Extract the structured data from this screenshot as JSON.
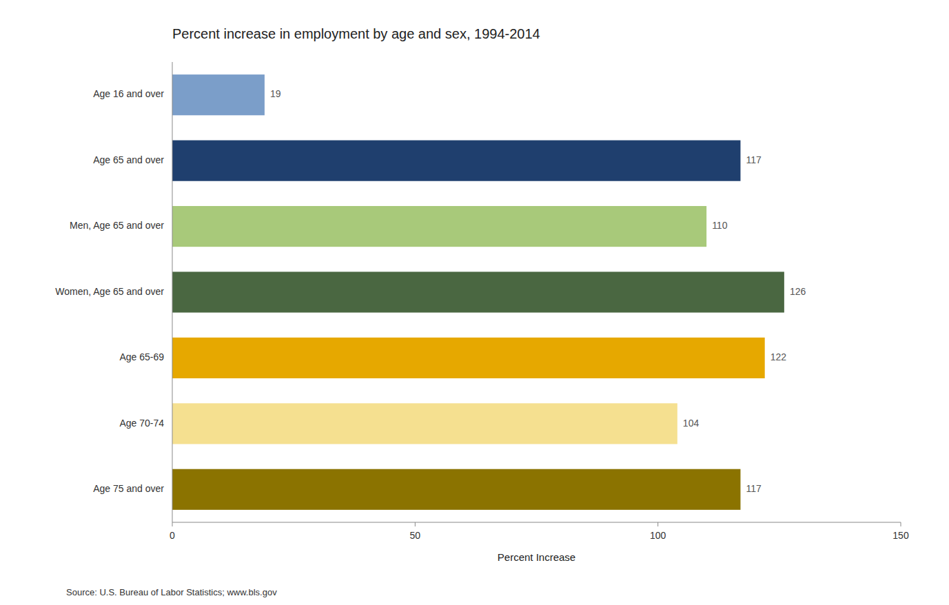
{
  "chart_data": {
    "type": "bar",
    "orientation": "horizontal",
    "title": "Percent increase in employment by age and sex, 1994-2014",
    "xlabel": "Percent Increase",
    "source": "Source: U.S. Bureau of Labor Statistics; www.bls.gov",
    "categories": [
      "Age 75 and over",
      "Age 70-74",
      "Age 65-69",
      "Women, Age 65 and over",
      "Men, Age 65 and over",
      "Age 65 and over",
      "Age 16 and over"
    ],
    "values": [
      117,
      104,
      122,
      126,
      110,
      117,
      19
    ],
    "colors": [
      "#8B7300",
      "#F5E090",
      "#E6A800",
      "#4A6741",
      "#A8C97A",
      "#1F3F6E",
      "#7B9EC9"
    ],
    "xlim": [
      0,
      150
    ],
    "xticks": [
      0,
      50,
      100,
      150
    ],
    "grid": false,
    "data_labels": true
  }
}
